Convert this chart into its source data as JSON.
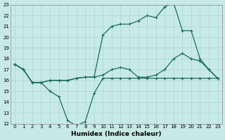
{
  "xlabel": "Humidex (Indice chaleur)",
  "bg_color": "#c8eae5",
  "grid_color": "#a8d8d0",
  "line_color": "#1a6b5a",
  "xlim": [
    -0.5,
    23.5
  ],
  "ylim": [
    12,
    23
  ],
  "xticks": [
    0,
    1,
    2,
    3,
    4,
    5,
    6,
    7,
    8,
    9,
    10,
    11,
    12,
    13,
    14,
    15,
    16,
    17,
    18,
    19,
    20,
    21,
    22,
    23
  ],
  "yticks": [
    12,
    13,
    14,
    15,
    16,
    17,
    18,
    19,
    20,
    21,
    22,
    23
  ],
  "line1_x": [
    0,
    1,
    2,
    3,
    4,
    5,
    6,
    7,
    8,
    9,
    10,
    11,
    12,
    13,
    14,
    15,
    16,
    17,
    18,
    19,
    20,
    21,
    22,
    23
  ],
  "line1_y": [
    17.5,
    17.0,
    15.8,
    15.8,
    15.0,
    14.5,
    12.3,
    11.8,
    12.2,
    14.8,
    16.2,
    16.2,
    16.2,
    16.2,
    16.2,
    16.2,
    16.2,
    16.2,
    16.2,
    16.2,
    16.2,
    16.2,
    16.2,
    16.2
  ],
  "line2_x": [
    0,
    1,
    2,
    3,
    4,
    5,
    6,
    7,
    8,
    9,
    10,
    11,
    12,
    13,
    14,
    15,
    16,
    17,
    18,
    19,
    20,
    21,
    22,
    23
  ],
  "line2_y": [
    17.5,
    17.0,
    15.8,
    15.8,
    16.0,
    16.0,
    16.0,
    16.2,
    16.3,
    16.3,
    16.5,
    17.0,
    17.2,
    17.0,
    16.3,
    16.3,
    16.5,
    17.0,
    18.0,
    18.5,
    18.0,
    17.8,
    17.0,
    16.2
  ],
  "line3_x": [
    0,
    1,
    2,
    3,
    4,
    5,
    6,
    7,
    8,
    9,
    10,
    11,
    12,
    13,
    14,
    15,
    16,
    17,
    18,
    19,
    20,
    21,
    22,
    23
  ],
  "line3_y": [
    17.5,
    17.0,
    15.8,
    15.8,
    16.0,
    16.0,
    16.0,
    16.2,
    16.3,
    16.3,
    20.2,
    21.0,
    21.2,
    21.2,
    21.5,
    22.0,
    21.8,
    22.8,
    23.2,
    20.6,
    20.6,
    18.0,
    17.0,
    16.2
  ]
}
